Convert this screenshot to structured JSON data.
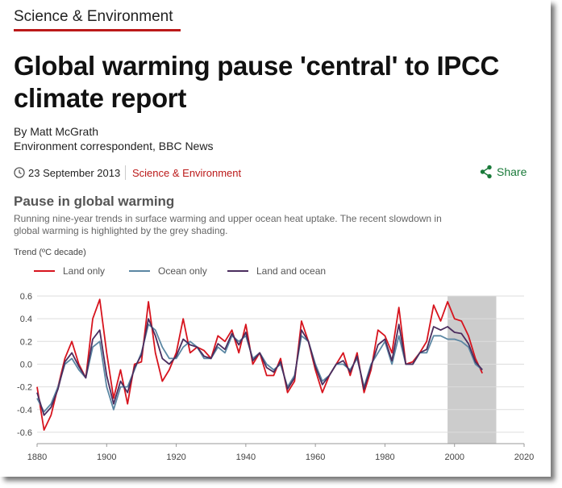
{
  "header": {
    "section": "Science & Environment"
  },
  "article": {
    "headline": "Global warming pause 'central' to IPCC climate report",
    "byline": "By Matt McGrath",
    "role": "Environment correspondent, BBC News",
    "date": "23 September 2013",
    "section_link": "Science & Environment",
    "share": "Share"
  },
  "chart_data": {
    "type": "line",
    "title": "Pause in global warming",
    "subtitle": "Running nine-year trends in surface warming and upper ocean heat uptake. The recent slowdown in global warming is highlighted by the grey shading.",
    "y_label": "Trend (ºC decade)",
    "x": [
      1880,
      1882,
      1884,
      1886,
      1888,
      1890,
      1892,
      1894,
      1896,
      1898,
      1900,
      1902,
      1904,
      1906,
      1908,
      1910,
      1912,
      1914,
      1916,
      1918,
      1920,
      1922,
      1924,
      1926,
      1928,
      1930,
      1932,
      1934,
      1936,
      1938,
      1940,
      1942,
      1944,
      1946,
      1948,
      1950,
      1952,
      1954,
      1956,
      1958,
      1960,
      1962,
      1964,
      1966,
      1968,
      1970,
      1972,
      1974,
      1976,
      1978,
      1980,
      1982,
      1984,
      1986,
      1988,
      1990,
      1992,
      1994,
      1996,
      1998,
      2000,
      2002,
      2004,
      2006,
      2008
    ],
    "series": [
      {
        "name": "Land only",
        "color": "#d7141e",
        "values": [
          -0.2,
          -0.58,
          -0.45,
          -0.2,
          0.05,
          0.2,
          0,
          -0.12,
          0.4,
          0.57,
          0.1,
          -0.3,
          -0.05,
          -0.35,
          0,
          0.02,
          0.55,
          0.1,
          -0.15,
          -0.05,
          0.1,
          0.4,
          0.1,
          0.15,
          0.12,
          0.05,
          0.25,
          0.2,
          0.3,
          0.1,
          0.35,
          0,
          0.1,
          -0.1,
          -0.1,
          0.05,
          -0.25,
          -0.15,
          0.38,
          0.2,
          -0.05,
          -0.25,
          -0.1,
          0,
          0.1,
          -0.1,
          0.1,
          -0.25,
          -0.05,
          0.3,
          0.25,
          0.1,
          0.5,
          0,
          0.02,
          0.1,
          0.2,
          0.52,
          0.38,
          0.55,
          0.4,
          0.38,
          0.25,
          0.05,
          -0.08
        ]
      },
      {
        "name": "Ocean only",
        "color": "#5b87a3",
        "values": [
          -0.3,
          -0.42,
          -0.35,
          -0.2,
          0,
          0.05,
          -0.05,
          -0.12,
          0.15,
          0.2,
          -0.2,
          -0.4,
          -0.2,
          -0.2,
          -0.05,
          0.1,
          0.35,
          0.3,
          0.15,
          0.05,
          0.05,
          0.15,
          0.2,
          0.15,
          0.05,
          0.05,
          0.15,
          0.1,
          0.25,
          0.2,
          0.25,
          0.05,
          0.1,
          0,
          -0.05,
          0,
          -0.2,
          -0.1,
          0.25,
          0.2,
          0,
          -0.15,
          -0.1,
          0,
          0,
          -0.05,
          0.05,
          -0.2,
          0,
          0.1,
          0.2,
          0,
          0.25,
          0,
          0,
          0.1,
          0.1,
          0.25,
          0.25,
          0.22,
          0.22,
          0.2,
          0.15,
          0,
          -0.05
        ]
      },
      {
        "name": "Land and ocean",
        "color": "#4b2d5e",
        "values": [
          -0.25,
          -0.45,
          -0.38,
          -0.22,
          0.02,
          0.1,
          -0.02,
          -0.12,
          0.22,
          0.3,
          -0.1,
          -0.35,
          -0.15,
          -0.25,
          -0.03,
          0.08,
          0.4,
          0.25,
          0.05,
          0,
          0.07,
          0.22,
          0.17,
          0.15,
          0.07,
          0.05,
          0.18,
          0.13,
          0.27,
          0.17,
          0.28,
          0.03,
          0.1,
          -0.03,
          -0.07,
          0.02,
          -0.22,
          -0.12,
          0.3,
          0.2,
          -0.02,
          -0.18,
          -0.1,
          0,
          0.03,
          -0.07,
          0.07,
          -0.22,
          -0.02,
          0.17,
          0.22,
          0.03,
          0.35,
          0,
          0,
          0.1,
          0.13,
          0.33,
          0.3,
          0.33,
          0.28,
          0.27,
          0.18,
          0.02,
          -0.05
        ]
      }
    ],
    "shading": [
      1998,
      2012
    ],
    "shading_color": "#cccccc",
    "xlim": [
      1880,
      2020
    ],
    "xticks": [
      1880,
      1900,
      1920,
      1940,
      1960,
      1980,
      2000,
      2020
    ],
    "ylim": [
      -0.7,
      0.6
    ],
    "yticks": [
      -0.6,
      -0.4,
      -0.2,
      {
        "value": 0,
        "label": "0.0"
      },
      0.2,
      0.4,
      0.6
    ],
    "grid": true
  }
}
